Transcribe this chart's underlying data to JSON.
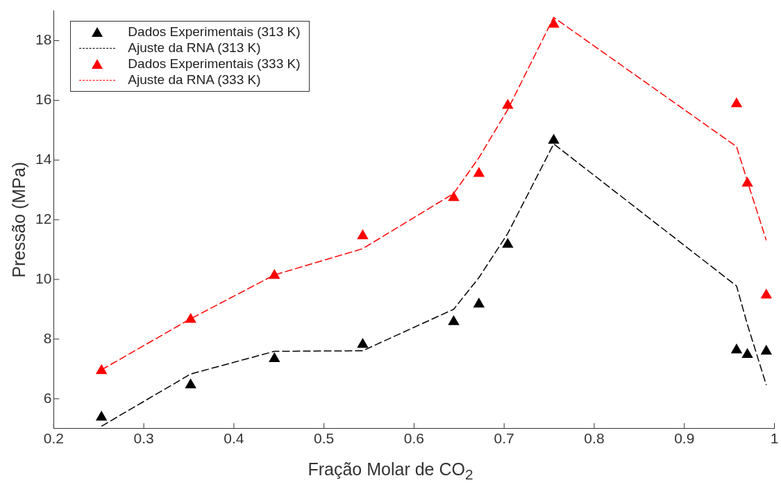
{
  "chart_data": {
    "type": "scatter",
    "xlabel": "Fração Molar de CO$_{2}$",
    "ylabel": "Pressão (MPa)",
    "xlim": [
      0.2,
      1
    ],
    "xticks": [
      0.2,
      0.3,
      0.4,
      0.5,
      0.6,
      0.7,
      0.8,
      0.9,
      1
    ],
    "ylim": [
      5,
      19
    ],
    "yticks": [
      6,
      8,
      10,
      12,
      14,
      16,
      18
    ],
    "grid": false,
    "legend": "top left",
    "series": [
      {
        "name": "Dados Experimentais (313 K)",
        "type": "scatter",
        "marker": "triangle",
        "color": "#000000",
        "x": [
          0.253,
          0.352,
          0.445,
          0.543,
          0.644,
          0.672,
          0.704,
          0.755,
          0.958,
          0.97,
          0.991
        ],
        "values": [
          5.38,
          6.46,
          7.34,
          7.82,
          8.58,
          9.17,
          11.17,
          14.66,
          7.63,
          7.48,
          7.59
        ]
      },
      {
        "name": "Ajuste da RNA (313 K)",
        "type": "line",
        "marker": "none",
        "line_style": "dashed",
        "color": "#000000",
        "x": [
          0.253,
          0.352,
          0.445,
          0.543,
          0.644,
          0.672,
          0.704,
          0.755,
          0.958,
          0.97,
          0.991
        ],
        "values": [
          5.08,
          6.83,
          7.59,
          7.61,
          9.0,
          10.06,
          11.54,
          14.54,
          9.78,
          8.49,
          6.46
        ]
      },
      {
        "name": "Dados Experimentais (333 K)",
        "type": "scatter",
        "marker": "triangle",
        "color": "#ff0000",
        "x": [
          0.253,
          0.352,
          0.445,
          0.543,
          0.644,
          0.672,
          0.704,
          0.755,
          0.958,
          0.97,
          0.991
        ],
        "values": [
          6.94,
          8.66,
          10.13,
          11.46,
          12.74,
          13.55,
          15.83,
          18.55,
          15.88,
          13.22,
          9.47
        ]
      },
      {
        "name": "Ajuste da RNA (333 K)",
        "type": "line",
        "marker": "none",
        "line_style": "dashed",
        "color": "#ff0000",
        "x": [
          0.253,
          0.352,
          0.445,
          0.543,
          0.644,
          0.672,
          0.704,
          0.755,
          0.958,
          0.97,
          0.991
        ],
        "values": [
          6.97,
          8.68,
          10.15,
          11.03,
          12.88,
          14.08,
          15.69,
          18.78,
          14.45,
          13.29,
          11.31
        ]
      }
    ]
  }
}
